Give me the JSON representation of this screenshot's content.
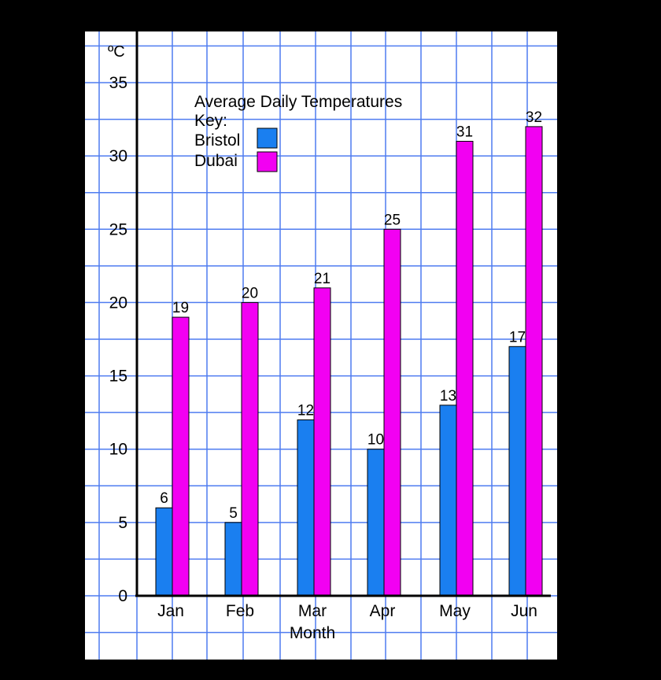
{
  "chart_data": {
    "type": "bar",
    "title": "Average Daily Temperatures",
    "legend_heading": "Key:",
    "legend_position": "top-left",
    "xlabel": "Month",
    "ylabel": "ºC",
    "categories": [
      "Jan",
      "Feb",
      "Mar",
      "Apr",
      "May",
      "Jun"
    ],
    "series": [
      {
        "name": "Bristol",
        "values": [
          6,
          5,
          12,
          10,
          13,
          17
        ],
        "labels": [
          "6",
          "5",
          "12",
          "10",
          "13",
          "17"
        ],
        "color": "#1a7ff0"
      },
      {
        "name": "Dubai",
        "values": [
          19,
          20,
          21,
          25,
          31,
          32
        ],
        "labels": [
          "19",
          "20",
          "21",
          "25",
          "31",
          "32"
        ],
        "color": "#f200f2"
      }
    ],
    "ylim": [
      0,
      35
    ],
    "yticks": [
      0,
      5,
      10,
      15,
      20,
      25,
      30,
      35
    ],
    "grid": true,
    "colors": {
      "paper": "#ffffff",
      "grid": "#4f7cf0",
      "axis": "#000000"
    }
  }
}
